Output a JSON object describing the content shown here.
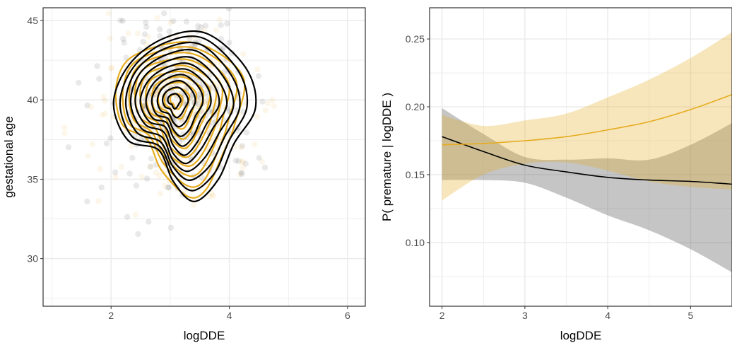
{
  "colors": {
    "group_black": "#000000",
    "group_gold": "#E6AB1E",
    "grid": "#ebebeb",
    "panel_border": "#333333"
  },
  "chart_data": [
    {
      "type": "scatter",
      "subtype": "scatter with 2D density contours, two groups",
      "xlabel": "logDDE",
      "ylabel": "gestational age",
      "xlim": [
        0.85,
        6.3
      ],
      "ylim": [
        27.0,
        45.8
      ],
      "x_ticks": [
        2,
        4,
        6
      ],
      "y_ticks": [
        30,
        35,
        40,
        45
      ],
      "grid": true,
      "legend": "none",
      "points_center": {
        "logDDE": 3.1,
        "gestational_age": 39.6
      },
      "contours": [
        {
          "group": "black",
          "color": "#000000",
          "center": [
            3.05,
            40.0
          ],
          "outer_ring": [
            [
              3.6,
              44.2
            ],
            [
              4.25,
              42.0
            ],
            [
              4.45,
              39.5
            ],
            [
              4.1,
              37.2
            ],
            [
              3.8,
              35.0
            ],
            [
              3.4,
              33.7
            ],
            [
              3.05,
              34.8
            ],
            [
              2.8,
              36.8
            ],
            [
              2.3,
              37.5
            ],
            [
              2.05,
              39.8
            ],
            [
              2.3,
              42.3
            ],
            [
              2.9,
              43.9
            ]
          ],
          "levels": 11
        },
        {
          "group": "gold",
          "color": "#E6AB1E",
          "center": [
            3.1,
            40.0
          ],
          "outer_ring": [
            [
              3.4,
              43.6
            ],
            [
              4.2,
              41.5
            ],
            [
              4.1,
              38.5
            ],
            [
              3.9,
              36.5
            ],
            [
              3.6,
              34.4
            ],
            [
              3.3,
              34.0
            ],
            [
              2.85,
              35.5
            ],
            [
              2.6,
              37.5
            ],
            [
              2.2,
              38.5
            ],
            [
              2.1,
              41.0
            ],
            [
              2.4,
              42.9
            ]
          ],
          "levels": 10
        }
      ]
    },
    {
      "type": "line",
      "subtype": "logistic fit with confidence bands",
      "xlabel": "logDDE",
      "ylabel": "P( premature | logDDE )",
      "xlim": [
        1.85,
        5.5
      ],
      "ylim": [
        0.053,
        0.273
      ],
      "x_ticks": [
        2,
        3,
        4,
        5
      ],
      "y_ticks": [
        0.1,
        0.15,
        0.2,
        0.25
      ],
      "grid": true,
      "legend": "none",
      "series": [
        {
          "color": "#000000",
          "x": [
            2.0,
            2.5,
            3.0,
            3.5,
            4.0,
            4.5,
            5.0,
            5.5
          ],
          "y": [
            0.178,
            0.167,
            0.157,
            0.152,
            0.148,
            0.146,
            0.145,
            0.143
          ],
          "lower": [
            0.146,
            0.146,
            0.144,
            0.133,
            0.12,
            0.109,
            0.095,
            0.078
          ],
          "upper": [
            0.199,
            0.18,
            0.163,
            0.161,
            0.162,
            0.161,
            0.172,
            0.188
          ]
        },
        {
          "color": "#E6AB1E",
          "x": [
            2.0,
            2.5,
            3.0,
            3.5,
            4.0,
            4.5,
            5.0,
            5.5
          ],
          "y": [
            0.172,
            0.173,
            0.175,
            0.178,
            0.183,
            0.189,
            0.198,
            0.209
          ],
          "lower": [
            0.131,
            0.15,
            0.158,
            0.159,
            0.153,
            0.145,
            0.141,
            0.139
          ],
          "upper": [
            0.194,
            0.186,
            0.19,
            0.195,
            0.207,
            0.22,
            0.236,
            0.255
          ]
        }
      ]
    }
  ]
}
